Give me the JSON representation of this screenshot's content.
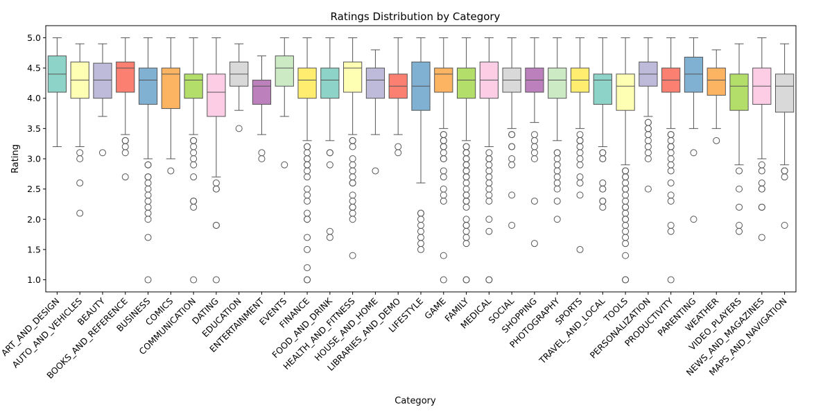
{
  "chart_data": {
    "type": "box",
    "title": "Ratings Distribution by Category",
    "xlabel": "Category",
    "ylabel": "Rating",
    "ylim": [
      0.8,
      5.2
    ],
    "yticks": [
      "1.0",
      "1.5",
      "2.0",
      "2.5",
      "3.0",
      "3.5",
      "4.0",
      "4.5",
      "5.0"
    ],
    "grid": false,
    "palette": [
      "#8dd3c7",
      "#ffffb3",
      "#bebada",
      "#fb8072",
      "#80b1d3",
      "#fdb462",
      "#b3de69",
      "#fccde5",
      "#d9d9d9",
      "#bc80bd",
      "#ccebc5",
      "#ffed6f"
    ],
    "categories": [
      {
        "name": "ART_AND_DESIGN",
        "q1": 4.1,
        "median": 4.4,
        "q3": 4.7,
        "whisker_low": 3.2,
        "whisker_high": 5.0,
        "outliers": []
      },
      {
        "name": "AUTO_AND_VEHICLES",
        "q1": 4.0,
        "median": 4.3,
        "q3": 4.6,
        "whisker_low": 3.2,
        "whisker_high": 4.9,
        "outliers": [
          3.1,
          3.0,
          2.6,
          2.1
        ]
      },
      {
        "name": "BEAUTY",
        "q1": 4.0,
        "median": 4.3,
        "q3": 4.58,
        "whisker_low": 3.7,
        "whisker_high": 4.9,
        "outliers": [
          3.1
        ]
      },
      {
        "name": "BOOKS_AND_REFERENCE",
        "q1": 4.1,
        "median": 4.5,
        "q3": 4.6,
        "whisker_low": 3.4,
        "whisker_high": 5.0,
        "outliers": [
          3.3,
          3.3,
          3.2,
          3.1,
          2.7
        ]
      },
      {
        "name": "BUSINESS",
        "q1": 3.9,
        "median": 4.3,
        "q3": 4.5,
        "whisker_low": 3.0,
        "whisker_high": 5.0,
        "outliers": [
          2.9,
          2.9,
          2.7,
          2.7,
          2.6,
          2.5,
          2.4,
          2.3,
          2.2,
          2.1,
          2.0,
          1.7,
          1.0
        ]
      },
      {
        "name": "COMICS",
        "q1": 3.83,
        "median": 4.4,
        "q3": 4.5,
        "whisker_low": 3.0,
        "whisker_high": 5.0,
        "outliers": [
          2.8
        ]
      },
      {
        "name": "COMMUNICATION",
        "q1": 4.0,
        "median": 4.3,
        "q3": 4.4,
        "whisker_low": 3.4,
        "whisker_high": 5.0,
        "outliers": [
          3.3,
          3.3,
          3.2,
          3.1,
          3.0,
          2.9,
          2.7,
          2.3,
          2.3,
          2.2,
          1.0
        ]
      },
      {
        "name": "DATING",
        "q1": 3.7,
        "median": 4.1,
        "q3": 4.4,
        "whisker_low": 2.7,
        "whisker_high": 5.0,
        "outliers": [
          2.6,
          2.5,
          2.5,
          1.9,
          1.9,
          1.0
        ]
      },
      {
        "name": "EDUCATION",
        "q1": 4.2,
        "median": 4.4,
        "q3": 4.6,
        "whisker_low": 3.8,
        "whisker_high": 4.9,
        "outliers": [
          3.5
        ]
      },
      {
        "name": "ENTERTAINMENT",
        "q1": 3.9,
        "median": 4.2,
        "q3": 4.3,
        "whisker_low": 3.4,
        "whisker_high": 4.7,
        "outliers": [
          3.1,
          3.0
        ]
      },
      {
        "name": "EVENTS",
        "q1": 4.2,
        "median": 4.5,
        "q3": 4.7,
        "whisker_low": 3.7,
        "whisker_high": 5.0,
        "outliers": [
          2.9
        ]
      },
      {
        "name": "FINANCE",
        "q1": 4.0,
        "median": 4.3,
        "q3": 4.5,
        "whisker_low": 3.3,
        "whisker_high": 5.0,
        "outliers": [
          3.2,
          3.2,
          3.1,
          3.0,
          3.0,
          2.9,
          2.9,
          2.8,
          2.7,
          2.5,
          2.4,
          2.3,
          2.1,
          2.0,
          2.0,
          1.7,
          1.5,
          1.2,
          1.0,
          1.0
        ]
      },
      {
        "name": "FOOD_AND_DRINK",
        "q1": 4.0,
        "median": 4.3,
        "q3": 4.5,
        "whisker_low": 3.3,
        "whisker_high": 5.0,
        "outliers": [
          3.1,
          3.1,
          2.9,
          1.8,
          1.7
        ]
      },
      {
        "name": "HEALTH_AND_FITNESS",
        "q1": 4.1,
        "median": 4.5,
        "q3": 4.6,
        "whisker_low": 3.4,
        "whisker_high": 5.0,
        "outliers": [
          3.3,
          3.3,
          3.2,
          3.0,
          2.9,
          2.8,
          2.7,
          2.6,
          2.6,
          2.4,
          2.3,
          2.2,
          2.2,
          2.1,
          2.0,
          1.4
        ]
      },
      {
        "name": "HOUSE_AND_HOME",
        "q1": 4.0,
        "median": 4.3,
        "q3": 4.5,
        "whisker_low": 3.4,
        "whisker_high": 4.8,
        "outliers": [
          2.8
        ]
      },
      {
        "name": "LIBRARIES_AND_DEMO",
        "q1": 4.0,
        "median": 4.2,
        "q3": 4.4,
        "whisker_low": 3.4,
        "whisker_high": 5.0,
        "outliers": [
          3.2,
          3.1
        ]
      },
      {
        "name": "LIFESTYLE",
        "q1": 3.8,
        "median": 4.2,
        "q3": 4.6,
        "whisker_low": 2.6,
        "whisker_high": 5.0,
        "outliers": [
          2.1,
          2.1,
          2.0,
          1.9,
          1.8,
          1.7,
          1.6,
          1.5
        ]
      },
      {
        "name": "GAME",
        "q1": 4.1,
        "median": 4.4,
        "q3": 4.5,
        "whisker_low": 3.5,
        "whisker_high": 5.0,
        "outliers": [
          3.4,
          3.4,
          3.3,
          3.3,
          3.2,
          3.2,
          3.1,
          3.0,
          3.0,
          2.8,
          2.7,
          2.5,
          2.4,
          2.3,
          1.4,
          1.0
        ]
      },
      {
        "name": "FAMILY",
        "q1": 4.0,
        "median": 4.3,
        "q3": 4.5,
        "whisker_low": 3.3,
        "whisker_high": 5.0,
        "outliers": [
          3.2,
          3.2,
          3.1,
          3.1,
          3.0,
          3.0,
          2.9,
          2.9,
          2.8,
          2.8,
          2.7,
          2.7,
          2.6,
          2.5,
          2.4,
          2.4,
          2.3,
          2.3,
          2.2,
          2.0,
          1.9,
          1.9,
          1.8,
          1.7,
          1.6,
          1.0,
          1.0
        ]
      },
      {
        "name": "MEDICAL",
        "q1": 4.0,
        "median": 4.3,
        "q3": 4.6,
        "whisker_low": 3.2,
        "whisker_high": 5.0,
        "outliers": [
          3.1,
          3.0,
          3.0,
          2.9,
          2.8,
          2.7,
          2.6,
          2.5,
          2.4,
          2.3,
          2.0,
          1.8,
          1.0,
          1.0
        ]
      },
      {
        "name": "SOCIAL",
        "q1": 4.1,
        "median": 4.3,
        "q3": 4.5,
        "whisker_low": 3.5,
        "whisker_high": 5.0,
        "outliers": [
          3.4,
          3.4,
          3.2,
          3.2,
          3.0,
          2.9,
          2.4,
          1.9
        ]
      },
      {
        "name": "SHOPPING",
        "q1": 4.1,
        "median": 4.3,
        "q3": 4.5,
        "whisker_low": 3.6,
        "whisker_high": 5.0,
        "outliers": [
          3.4,
          3.3,
          3.2,
          3.1,
          3.0,
          2.3,
          1.6
        ]
      },
      {
        "name": "PHOTOGRAPHY",
        "q1": 4.0,
        "median": 4.3,
        "q3": 4.5,
        "whisker_low": 3.3,
        "whisker_high": 5.0,
        "outliers": [
          3.1,
          3.1,
          3.0,
          2.9,
          2.8,
          2.7,
          2.6,
          2.5,
          2.3,
          2.0
        ]
      },
      {
        "name": "SPORTS",
        "q1": 4.1,
        "median": 4.3,
        "q3": 4.5,
        "whisker_low": 3.5,
        "whisker_high": 5.0,
        "outliers": [
          3.4,
          3.3,
          3.3,
          3.2,
          3.1,
          3.0,
          2.9,
          2.7,
          2.6,
          2.4,
          1.5
        ]
      },
      {
        "name": "TRAVEL_AND_LOCAL",
        "q1": 3.9,
        "median": 4.3,
        "q3": 4.4,
        "whisker_low": 3.2,
        "whisker_high": 5.0,
        "outliers": [
          3.1,
          3.1,
          3.0,
          3.0,
          2.6,
          2.5,
          2.5,
          2.3,
          2.3,
          2.2
        ]
      },
      {
        "name": "TOOLS",
        "q1": 3.8,
        "median": 4.2,
        "q3": 4.4,
        "whisker_low": 2.9,
        "whisker_high": 5.0,
        "outliers": [
          2.8,
          2.8,
          2.7,
          2.7,
          2.6,
          2.5,
          2.5,
          2.4,
          2.3,
          2.2,
          2.2,
          2.1,
          2.0,
          2.0,
          1.9,
          1.8,
          1.7,
          1.6,
          1.4,
          1.0,
          1.0
        ]
      },
      {
        "name": "PERSONALIZATION",
        "q1": 4.2,
        "median": 4.4,
        "q3": 4.6,
        "whisker_low": 3.7,
        "whisker_high": 5.0,
        "outliers": [
          3.6,
          3.6,
          3.5,
          3.5,
          3.4,
          3.3,
          3.2,
          3.1,
          3.0,
          2.5
        ]
      },
      {
        "name": "PRODUCTIVITY",
        "q1": 4.1,
        "median": 4.3,
        "q3": 4.5,
        "whisker_low": 3.5,
        "whisker_high": 5.0,
        "outliers": [
          3.4,
          3.4,
          3.3,
          3.2,
          3.2,
          3.1,
          3.0,
          2.9,
          2.8,
          2.6,
          2.4,
          2.3,
          1.9,
          1.8,
          1.0
        ]
      },
      {
        "name": "PARENTING",
        "q1": 4.1,
        "median": 4.4,
        "q3": 4.68,
        "whisker_low": 3.5,
        "whisker_high": 5.0,
        "outliers": [
          3.1,
          2.0
        ]
      },
      {
        "name": "WEATHER",
        "q1": 4.05,
        "median": 4.3,
        "q3": 4.5,
        "whisker_low": 3.5,
        "whisker_high": 4.8,
        "outliers": [
          3.3
        ]
      },
      {
        "name": "VIDEO_PLAYERS",
        "q1": 3.8,
        "median": 4.2,
        "q3": 4.4,
        "whisker_low": 2.9,
        "whisker_high": 4.9,
        "outliers": [
          2.8,
          2.5,
          2.2,
          1.9,
          1.8
        ]
      },
      {
        "name": "NEWS_AND_MAGAZINES",
        "q1": 3.9,
        "median": 4.2,
        "q3": 4.5,
        "whisker_low": 3.0,
        "whisker_high": 5.0,
        "outliers": [
          2.9,
          2.8,
          2.6,
          2.5,
          2.5,
          2.2,
          2.2,
          1.7
        ]
      },
      {
        "name": "MAPS_AND_NAVIGATION",
        "q1": 3.77,
        "median": 4.2,
        "q3": 4.4,
        "whisker_low": 2.9,
        "whisker_high": 4.9,
        "outliers": [
          2.8,
          2.8,
          2.7,
          1.9
        ]
      }
    ]
  }
}
